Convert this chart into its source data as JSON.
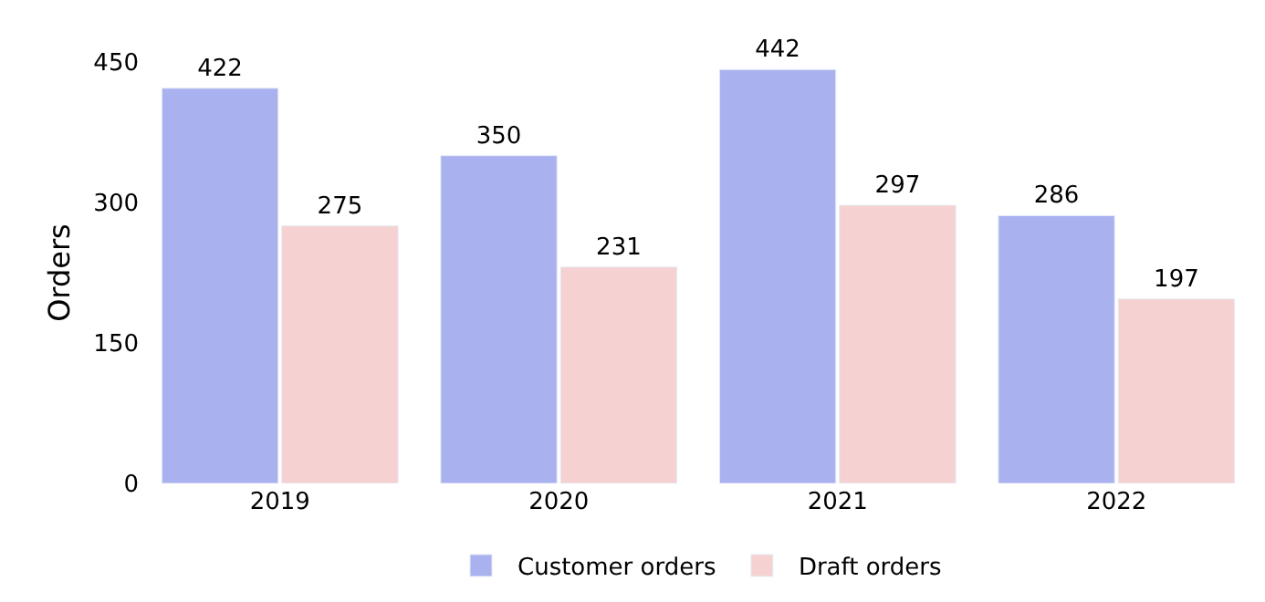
{
  "chart_data": {
    "type": "bar",
    "ylabel": "Orders",
    "categories": [
      "2019",
      "2020",
      "2021",
      "2022"
    ],
    "series": [
      {
        "name": "Customer orders",
        "color": "#aab1ef",
        "values": [
          422,
          350,
          442,
          286
        ]
      },
      {
        "name": "Draft orders",
        "color": "#f5d1d1",
        "values": [
          275,
          231,
          297,
          197
        ]
      }
    ],
    "ylim": [
      0,
      450
    ],
    "yticks": [
      0,
      150,
      300,
      450
    ],
    "legend": "bottom",
    "data_labels": true
  }
}
